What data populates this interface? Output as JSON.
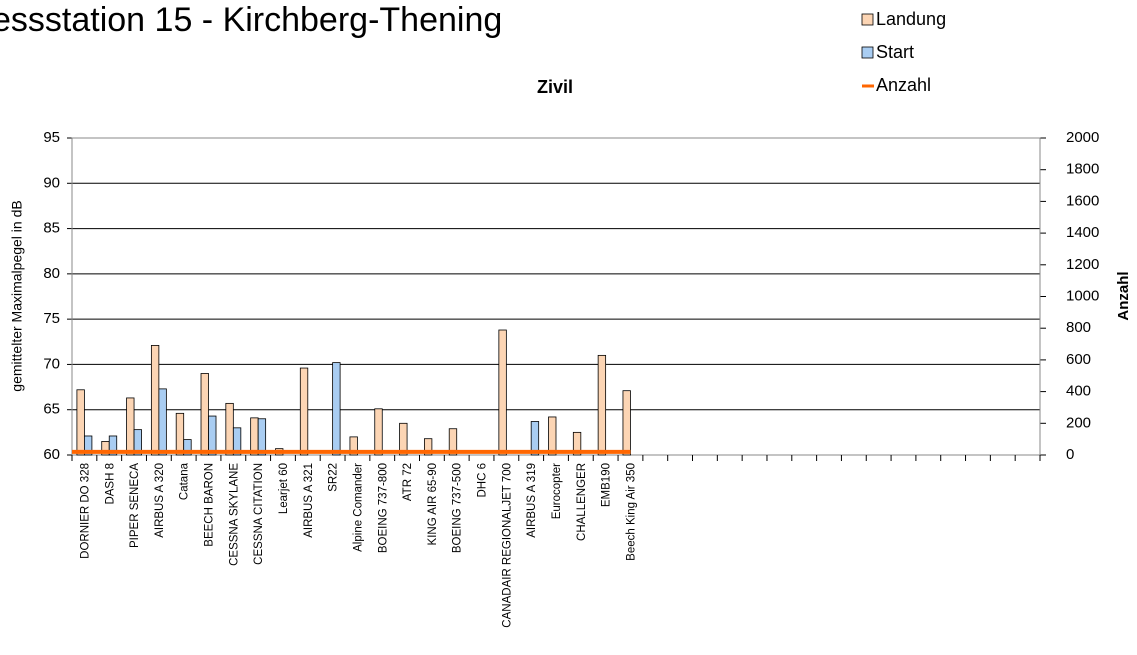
{
  "chart_data": {
    "type": "bar",
    "title": "essstation 15 - Kirchberg-Thening",
    "subtitle": "Zivil",
    "y_label": "gemittelter Maximalpegel in dB",
    "y2_label": "Anzahl",
    "categories": [
      "DORNIER DO 328",
      "DASH 8",
      "PIPER SENECA",
      "AIRBUS A 320",
      "Catana",
      "BEECH BARON",
      "CESSNA SKYLANE",
      "CESSNA CITATION",
      "Learjet 60",
      "AIRBUS A 321",
      "SR22",
      "Alpine Comander",
      "BOEING 737-800",
      "ATR 72",
      "KING AIR 65-90",
      "BOEING 737-500",
      "DHC 6",
      "CANADAIR REGIONALJET 700",
      "AIRBUS A 319",
      "Eurocopter",
      "CHALLENGER",
      "EMB190",
      "Beech King Air 350",
      null,
      null,
      null,
      null,
      null,
      null,
      null,
      null,
      null,
      null,
      null,
      null,
      null,
      null,
      null,
      null
    ],
    "series": [
      {
        "name": "Landung",
        "color": "#fcd5b4",
        "type": "bar",
        "values": [
          67.2,
          61.5,
          66.3,
          72.1,
          64.6,
          69.0,
          65.7,
          64.1,
          60.7,
          69.6,
          null,
          62.0,
          65.1,
          63.5,
          61.8,
          62.9,
          null,
          73.8,
          null,
          64.2,
          62.5,
          71.0,
          67.1,
          null,
          null,
          null,
          null,
          null,
          null,
          null,
          null,
          null,
          null,
          null,
          null,
          null,
          null,
          null,
          null
        ]
      },
      {
        "name": "Start",
        "color": "#a9cdf2",
        "type": "bar",
        "values": [
          62.1,
          62.1,
          62.8,
          67.3,
          61.7,
          64.3,
          63.0,
          64.0,
          null,
          null,
          70.2,
          null,
          null,
          null,
          null,
          null,
          null,
          null,
          63.7,
          null,
          null,
          null,
          null,
          null,
          null,
          null,
          null,
          null,
          null,
          null,
          null,
          null,
          null,
          null,
          null,
          null,
          null,
          null,
          null
        ]
      },
      {
        "name": "Anzahl",
        "color": "#ff6600",
        "type": "line",
        "axis": "y2",
        "values": [
          20,
          20,
          20,
          20,
          20,
          20,
          20,
          20,
          20,
          20,
          20,
          20,
          20,
          20,
          20,
          20,
          20,
          20,
          20,
          20,
          20,
          20,
          20,
          null,
          null,
          null,
          null,
          null,
          null,
          null,
          null,
          null,
          null,
          null,
          null,
          null,
          null,
          null,
          null
        ]
      }
    ],
    "ylim": [
      60,
      95
    ],
    "yticks": [
      60,
      65,
      70,
      75,
      80,
      85,
      90,
      95
    ],
    "y2lim": [
      0,
      2000
    ],
    "y2ticks": [
      0,
      200,
      400,
      600,
      800,
      1000,
      1200,
      1400,
      1600,
      1800,
      2000
    ],
    "grid": true,
    "legend": "top-right"
  }
}
